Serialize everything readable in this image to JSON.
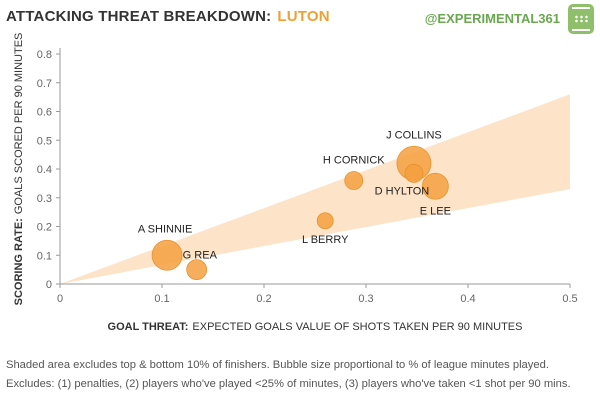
{
  "header": {
    "title_main": "ATTACKING THREAT BREAKDOWN:",
    "title_team": "LUTON",
    "handle": "@EXPERIMENTAL361"
  },
  "colors": {
    "bubble": "#f5a040",
    "band": "#fde3c8",
    "axis": "#999999",
    "title_team": "#f0a030",
    "handle": "#6aa84f"
  },
  "chart_data": {
    "type": "scatter",
    "xlabel_bold": "GOAL THREAT:",
    "xlabel_rest": "EXPECTED GOALS VALUE OF SHOTS TAKEN PER 90 MINUTES",
    "ylabel_bold": "SCORING RATE:",
    "ylabel_rest": "GOALS SCORED PER 90 MINUTES",
    "xlim": [
      0,
      0.5
    ],
    "ylim": [
      0,
      0.8
    ],
    "xticks": [
      "0",
      "0.1",
      "0.2",
      "0.3",
      "0.4",
      "0.5"
    ],
    "yticks": [
      "0",
      "0.1",
      "0.2",
      "0.3",
      "0.4",
      "0.5",
      "0.6",
      "0.7",
      "0.8"
    ],
    "band": {
      "lower": [
        [
          0,
          0
        ],
        [
          0.5,
          0.33
        ]
      ],
      "upper": [
        [
          0,
          0
        ],
        [
          0.5,
          0.66
        ]
      ]
    },
    "points": [
      {
        "name": "A SHINNIE",
        "x": 0.105,
        "y": 0.1,
        "size": 15
      },
      {
        "name": "G REA",
        "x": 0.134,
        "y": 0.05,
        "size": 10
      },
      {
        "name": "L BERRY",
        "x": 0.26,
        "y": 0.22,
        "size": 8
      },
      {
        "name": "H CORNICK",
        "x": 0.288,
        "y": 0.36,
        "size": 9
      },
      {
        "name": "J COLLINS",
        "x": 0.347,
        "y": 0.42,
        "size": 17
      },
      {
        "name": "D HYLTON",
        "x": 0.347,
        "y": 0.385,
        "size": 9
      },
      {
        "name": "E LEE",
        "x": 0.368,
        "y": 0.34,
        "size": 13
      }
    ]
  },
  "notes": {
    "line1": "Shaded area excludes top & bottom 10% of finishers. Bubble size proportional to % of league minutes played.",
    "line2": "Excludes: (1) penalties, (2) players who've played <25% of minutes, (3) players who've taken <1 shot per 90 mins."
  }
}
